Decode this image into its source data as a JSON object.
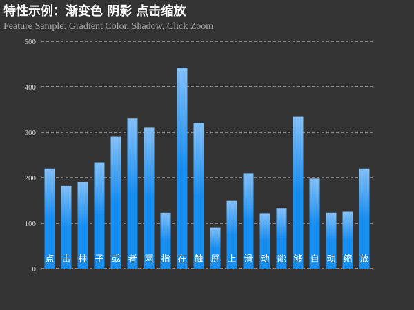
{
  "chart_data": {
    "type": "bar",
    "title": "特性示例：渐变色 阴影 点击缩放",
    "subtitle": "Feature Sample: Gradient Color, Shadow, Click Zoom",
    "categories": [
      "点",
      "击",
      "柱",
      "子",
      "或",
      "者",
      "两",
      "指",
      "在",
      "触",
      "屏",
      "上",
      "滑",
      "动",
      "能",
      "够",
      "自",
      "动",
      "缩",
      "放"
    ],
    "values": [
      220,
      182,
      191,
      234,
      290,
      330,
      310,
      123,
      442,
      321,
      90,
      149,
      210,
      122,
      133,
      334,
      198,
      123,
      125,
      220
    ],
    "y_ticks": [
      "0",
      "100",
      "200",
      "300",
      "400",
      "500"
    ],
    "ylim": [
      0,
      500
    ],
    "grid": "dashed horizontal",
    "category_labels_position": "inside-bottom",
    "colors": {
      "background": "#333333",
      "bar_top": "#83bff6",
      "bar_mid": "#188df0",
      "bar_bottom": "#188df0",
      "grid": "#dddddd",
      "tick_text": "#cccccc",
      "label_text": "#ffffff",
      "title_text": "#ffffff",
      "subtitle_text": "#aaaaaa"
    }
  }
}
